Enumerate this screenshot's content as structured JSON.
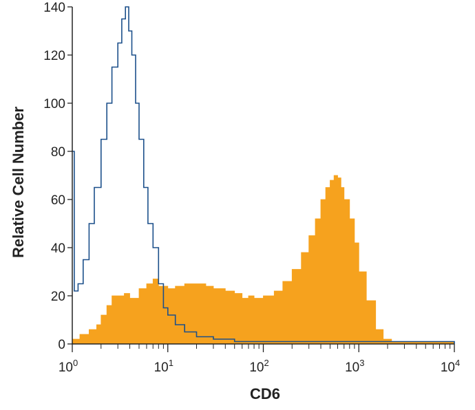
{
  "chart_data": {
    "type": "area",
    "xlabel": "CD6",
    "ylabel": "Relative Cell Number",
    "xscale": "log",
    "xlim": [
      1,
      10000
    ],
    "ylim": [
      0,
      140
    ],
    "x_ticks": [
      {
        "base": "10",
        "exp": "0"
      },
      {
        "base": "10",
        "exp": "1"
      },
      {
        "base": "10",
        "exp": "2"
      },
      {
        "base": "10",
        "exp": "3"
      },
      {
        "base": "10",
        "exp": "4"
      }
    ],
    "y_ticks": [
      "0",
      "20",
      "40",
      "60",
      "80",
      "100",
      "120",
      "140"
    ],
    "grid": false,
    "series": [
      {
        "style": "filled",
        "color": "#f6a21e",
        "points": [
          [
            1.0,
            2
          ],
          [
            1.2,
            4
          ],
          [
            1.5,
            6
          ],
          [
            1.8,
            8
          ],
          [
            2.0,
            12
          ],
          [
            2.3,
            16
          ],
          [
            2.6,
            20
          ],
          [
            3.0,
            20
          ],
          [
            3.5,
            21
          ],
          [
            4.0,
            19
          ],
          [
            5.0,
            23
          ],
          [
            6.0,
            25
          ],
          [
            7.0,
            27
          ],
          [
            8.0,
            24
          ],
          [
            10,
            23
          ],
          [
            12,
            24
          ],
          [
            15,
            25
          ],
          [
            20,
            25
          ],
          [
            25,
            24
          ],
          [
            30,
            23
          ],
          [
            40,
            22
          ],
          [
            50,
            21
          ],
          [
            60,
            19
          ],
          [
            70,
            20
          ],
          [
            80,
            19
          ],
          [
            90,
            19
          ],
          [
            100,
            20
          ],
          [
            130,
            22
          ],
          [
            160,
            26
          ],
          [
            200,
            31
          ],
          [
            250,
            38
          ],
          [
            300,
            45
          ],
          [
            350,
            52
          ],
          [
            400,
            60
          ],
          [
            450,
            65
          ],
          [
            500,
            68
          ],
          [
            550,
            70
          ],
          [
            600,
            69
          ],
          [
            650,
            65
          ],
          [
            700,
            60
          ],
          [
            800,
            52
          ],
          [
            900,
            42
          ],
          [
            1000,
            30
          ],
          [
            1200,
            18
          ],
          [
            1500,
            6
          ],
          [
            1800,
            2
          ],
          [
            2200,
            1
          ],
          [
            3000,
            1
          ],
          [
            5000,
            1
          ],
          [
            10000,
            0
          ]
        ]
      },
      {
        "style": "line",
        "color": "#1b4f8a",
        "points": [
          [
            1.0,
            80
          ],
          [
            1.05,
            22
          ],
          [
            1.15,
            25
          ],
          [
            1.3,
            35
          ],
          [
            1.5,
            50
          ],
          [
            1.7,
            65
          ],
          [
            2.0,
            85
          ],
          [
            2.3,
            100
          ],
          [
            2.6,
            115
          ],
          [
            3.0,
            125
          ],
          [
            3.3,
            135
          ],
          [
            3.6,
            140
          ],
          [
            3.9,
            130
          ],
          [
            4.2,
            120
          ],
          [
            4.6,
            100
          ],
          [
            5.0,
            85
          ],
          [
            5.6,
            65
          ],
          [
            6.2,
            50
          ],
          [
            7.0,
            40
          ],
          [
            8.0,
            25
          ],
          [
            9.0,
            15
          ],
          [
            10,
            12
          ],
          [
            12,
            8
          ],
          [
            15,
            5
          ],
          [
            20,
            3
          ],
          [
            30,
            2
          ],
          [
            50,
            1
          ],
          [
            100,
            1
          ],
          [
            300,
            1
          ],
          [
            1000,
            1
          ],
          [
            10000,
            0
          ]
        ]
      }
    ]
  }
}
